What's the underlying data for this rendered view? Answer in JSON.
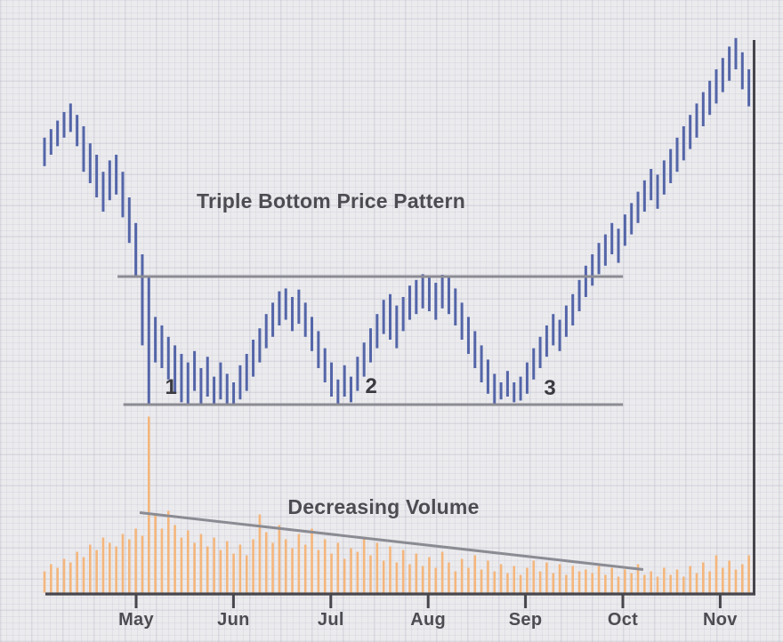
{
  "annotations": {
    "pattern_title": "Triple Bottom Price Pattern",
    "volume_title": "Decreasing Volume",
    "bottom_markers": [
      {
        "text": "1",
        "index": 19.4,
        "price": 36.6
      },
      {
        "text": "2",
        "index": 50.1,
        "price": 36.7
      },
      {
        "text": "3",
        "index": 77.5,
        "price": 36.4
      }
    ]
  },
  "x_axis": {
    "months": [
      "May",
      "Jun",
      "Jul",
      "Aug",
      "Sep",
      "Oct",
      "Nov"
    ]
  },
  "colors": {
    "background": "#ebebee",
    "price_bar": "#5465a8",
    "volume_bar": "#f4b67c",
    "pattern_line": "#8b8b93",
    "axis": "#46464c",
    "text": "#4c4c52",
    "marker_text": "#3a3a40"
  },
  "chart_data": {
    "type": "hilo-bar",
    "title": "Triple Bottom Price Pattern",
    "subtitle": "Decreasing Volume",
    "x_tick_labels": [
      "May",
      "Jun",
      "Jul",
      "Aug",
      "Sep",
      "Oct",
      "Nov"
    ],
    "y_axis_visible_labels": "none (unlabeled price/volume scales, arbitrary 0-100 units)",
    "grid": "graph-paper background",
    "legend": "none",
    "price": {
      "units": "relative price 0-100",
      "bars_high_low": [
        [
          80.5,
          75.5
        ],
        [
          82,
          77.5
        ],
        [
          83.5,
          79
        ],
        [
          85,
          80.5
        ],
        [
          86.5,
          81.5
        ],
        [
          84.5,
          79
        ],
        [
          82.5,
          74.5
        ],
        [
          79.5,
          72.5
        ],
        [
          77.5,
          70
        ],
        [
          74.5,
          67.5
        ],
        [
          76.5,
          69.5
        ],
        [
          77.5,
          70.5
        ],
        [
          74.5,
          66.5
        ],
        [
          70,
          62
        ],
        [
          65.5,
          56
        ],
        [
          60,
          44
        ],
        [
          56.3,
          33.6
        ],
        [
          49,
          41
        ],
        [
          47.5,
          40
        ],
        [
          45.5,
          38
        ],
        [
          44,
          35.5
        ],
        [
          42.5,
          34
        ],
        [
          41,
          33.6
        ],
        [
          43,
          36
        ],
        [
          40,
          33.8
        ],
        [
          42,
          35
        ],
        [
          38.5,
          33.6
        ],
        [
          41,
          34.5
        ],
        [
          39,
          33.8
        ],
        [
          37.5,
          33.6
        ],
        [
          40.5,
          34.5
        ],
        [
          42.5,
          36
        ],
        [
          45,
          38.5
        ],
        [
          47,
          41
        ],
        [
          49.5,
          43.5
        ],
        [
          51.5,
          45.5
        ],
        [
          53.5,
          47.5
        ],
        [
          54,
          48.5
        ],
        [
          52.5,
          46.5
        ],
        [
          53.8,
          47.8
        ],
        [
          51.5,
          45.5
        ],
        [
          49,
          43
        ],
        [
          46.5,
          40
        ],
        [
          43.5,
          37.5
        ],
        [
          41,
          35
        ],
        [
          38,
          33.6
        ],
        [
          40.5,
          35
        ],
        [
          38.5,
          34
        ],
        [
          42,
          36
        ],
        [
          44.5,
          38.5
        ],
        [
          47,
          41
        ],
        [
          49.5,
          43.5
        ],
        [
          52,
          46
        ],
        [
          53,
          45
        ],
        [
          51,
          43.5
        ],
        [
          52.5,
          46.5
        ],
        [
          54.5,
          48.5
        ],
        [
          55.5,
          49.5
        ],
        [
          56.5,
          50.5
        ],
        [
          56,
          50
        ],
        [
          55,
          48.5
        ],
        [
          56.4,
          50.5
        ],
        [
          56.2,
          49.5
        ],
        [
          54,
          47.5
        ],
        [
          51.5,
          45
        ],
        [
          49,
          42.5
        ],
        [
          46.5,
          40
        ],
        [
          44,
          37.5
        ],
        [
          41.5,
          35.5
        ],
        [
          39,
          33.6
        ],
        [
          37.5,
          34.5
        ],
        [
          39.5,
          35
        ],
        [
          37.5,
          34
        ],
        [
          38.5,
          34.3
        ],
        [
          41,
          35.5
        ],
        [
          43.5,
          38
        ],
        [
          45.5,
          40
        ],
        [
          47.5,
          42
        ],
        [
          49.5,
          44
        ],
        [
          48.5,
          43
        ],
        [
          51,
          45.5
        ],
        [
          53,
          47.5
        ],
        [
          55.5,
          50
        ],
        [
          58,
          52.5
        ],
        [
          60,
          54.5
        ],
        [
          62,
          56.5
        ],
        [
          63.5,
          58
        ],
        [
          65.5,
          60
        ],
        [
          64.5,
          58.5
        ],
        [
          67,
          61.5
        ],
        [
          69,
          63.5
        ],
        [
          71,
          65.5
        ],
        [
          73,
          67.5
        ],
        [
          75,
          69.5
        ],
        [
          74,
          68
        ],
        [
          76.5,
          70.5
        ],
        [
          78.5,
          72.5
        ],
        [
          80.5,
          74.5
        ],
        [
          82.5,
          76.5
        ],
        [
          84.5,
          78.5
        ],
        [
          86.5,
          80.5
        ],
        [
          88.5,
          82.5
        ],
        [
          90.5,
          84.5
        ],
        [
          92.5,
          86.5
        ],
        [
          94.5,
          88.5
        ],
        [
          96.5,
          90.5
        ],
        [
          98,
          92.5
        ],
        [
          95.5,
          89
        ],
        [
          92.5,
          86
        ]
      ],
      "resistance": {
        "level": 56.1,
        "from_index": 11.2,
        "to_index": 88.7
      },
      "support": {
        "level": 33.6,
        "from_index": 12.1,
        "to_index": 88.7
      }
    },
    "volume": {
      "units": "relative volume 0-100",
      "values": [
        12,
        16,
        14,
        19,
        17,
        23,
        20,
        27,
        24,
        31,
        28,
        26,
        33,
        30,
        36,
        32,
        99,
        44,
        36,
        46,
        38,
        31,
        35,
        28,
        33,
        26,
        31,
        24,
        29,
        22,
        27,
        21,
        30,
        44,
        34,
        28,
        38,
        30,
        25,
        33,
        27,
        36,
        24,
        30,
        22,
        28,
        19,
        25,
        23,
        31,
        21,
        28,
        18,
        26,
        17,
        24,
        16,
        22,
        15,
        20,
        14,
        23,
        17,
        12,
        19,
        14,
        21,
        13,
        18,
        12,
        16,
        11,
        15,
        10,
        14,
        18,
        12,
        17,
        11,
        16,
        10,
        15,
        12,
        13,
        11,
        15,
        10,
        14,
        9,
        13,
        11,
        16,
        10,
        12,
        9,
        14,
        10,
        13,
        9,
        15,
        11,
        17,
        12,
        21,
        14,
        18,
        13,
        16,
        21
      ],
      "trendline": {
        "from_index": 14.6,
        "from_value": 44.5,
        "to_index": 91.8,
        "to_value": 12.5
      }
    }
  }
}
